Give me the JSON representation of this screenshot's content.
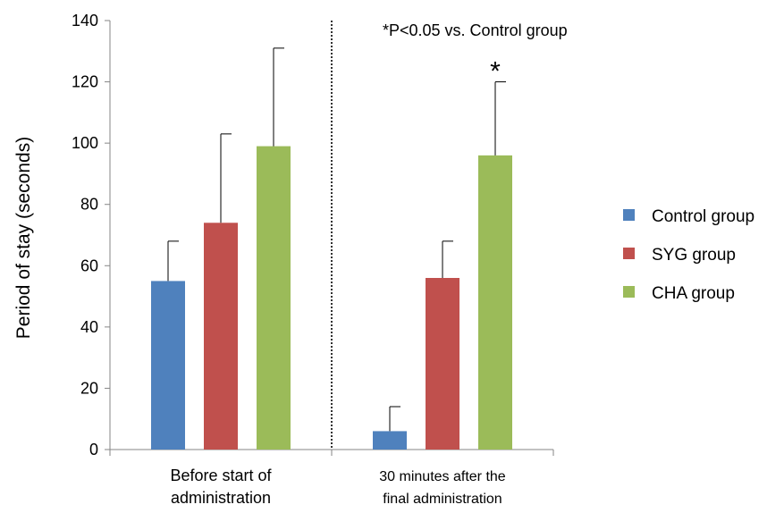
{
  "chart_data": {
    "type": "bar",
    "ylabel": "Period of stay (seconds)",
    "xlabel": "",
    "ylim": [
      0,
      140
    ],
    "yticks": [
      0,
      20,
      40,
      60,
      80,
      100,
      120,
      140
    ],
    "grid": false,
    "legend_position": "right",
    "annotation": "*P<0.05 vs. Control group",
    "significance_marker": "*",
    "categories": [
      [
        "Before start of",
        "administration"
      ],
      [
        "30 minutes after the",
        "final administration"
      ]
    ],
    "series": [
      {
        "name": "Control group",
        "color": "#4f81bd",
        "values": [
          55,
          6
        ],
        "errors": [
          13,
          8
        ]
      },
      {
        "name": "SYG group",
        "color": "#c0504d",
        "values": [
          74,
          56
        ],
        "errors": [
          29,
          12
        ]
      },
      {
        "name": "CHA group",
        "color": "#9bbb59",
        "values": [
          99,
          96
        ],
        "errors": [
          32,
          24
        ]
      }
    ],
    "significant": [
      {
        "category": 1,
        "series": 2
      }
    ]
  }
}
